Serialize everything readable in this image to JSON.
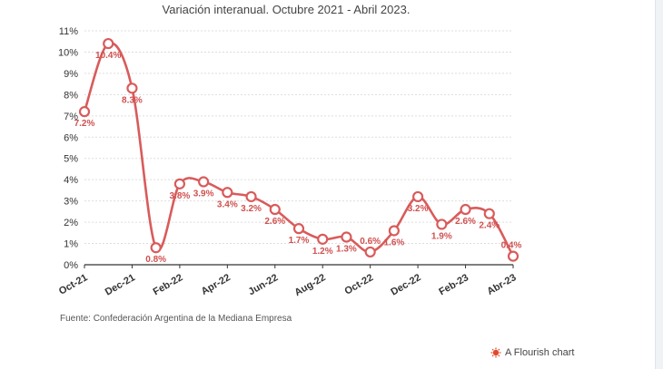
{
  "title": "Variación interanual. Octubre 2021 - Abril 2023.",
  "source": "Fuente: Confederación Argentina de la Mediana Empresa",
  "credit": "A Flourish chart",
  "colors": {
    "line": "#d95b5b",
    "label": "#d05050",
    "grid": "#dddddd",
    "axis": "#333333",
    "credit_icon": "#e04a2a"
  },
  "chart_data": {
    "type": "line",
    "title": "Variación interanual. Octubre 2021 - Abril 2023.",
    "xlabel": "",
    "ylabel": "",
    "ylim": [
      0,
      11
    ],
    "yticks": [
      0,
      1,
      2,
      3,
      4,
      5,
      6,
      7,
      8,
      9,
      10,
      11
    ],
    "ytick_format": "{v}%",
    "grid": true,
    "x": [
      "Oct-21",
      "Nov-21",
      "Dec-21",
      "Jan-22",
      "Feb-22",
      "Mar-22",
      "Apr-22",
      "May-22",
      "Jun-22",
      "Jul-22",
      "Aug-22",
      "Sep-22",
      "Oct-22",
      "Nov-22",
      "Dec-22",
      "Jan-23",
      "Feb-23",
      "Mar-23",
      "Apr-23"
    ],
    "xtick_labels": [
      "Oct-21",
      "Dec-21",
      "Feb-22",
      "Apr-22",
      "Jun-22",
      "Aug-22",
      "Oct-22",
      "Dec-22",
      "Feb-23",
      "Abr-23"
    ],
    "series": [
      {
        "values": [
          7.2,
          10.4,
          8.3,
          0.8,
          3.8,
          3.9,
          3.4,
          3.2,
          2.6,
          1.7,
          1.2,
          1.3,
          0.6,
          1.6,
          3.2,
          1.9,
          2.6,
          2.4,
          0.4
        ],
        "labels": [
          "7.2%",
          "10.4%",
          "8.3%",
          "0.8%",
          "3.8%",
          "3.9%",
          "3.4%",
          "3.2%",
          "2.6%",
          "1.7%",
          "1.2%",
          "1.3%",
          "0.6%",
          "1.6%",
          "3.2%",
          "1.9%",
          "2.6%",
          "2.4%",
          "0.4%"
        ]
      }
    ]
  }
}
